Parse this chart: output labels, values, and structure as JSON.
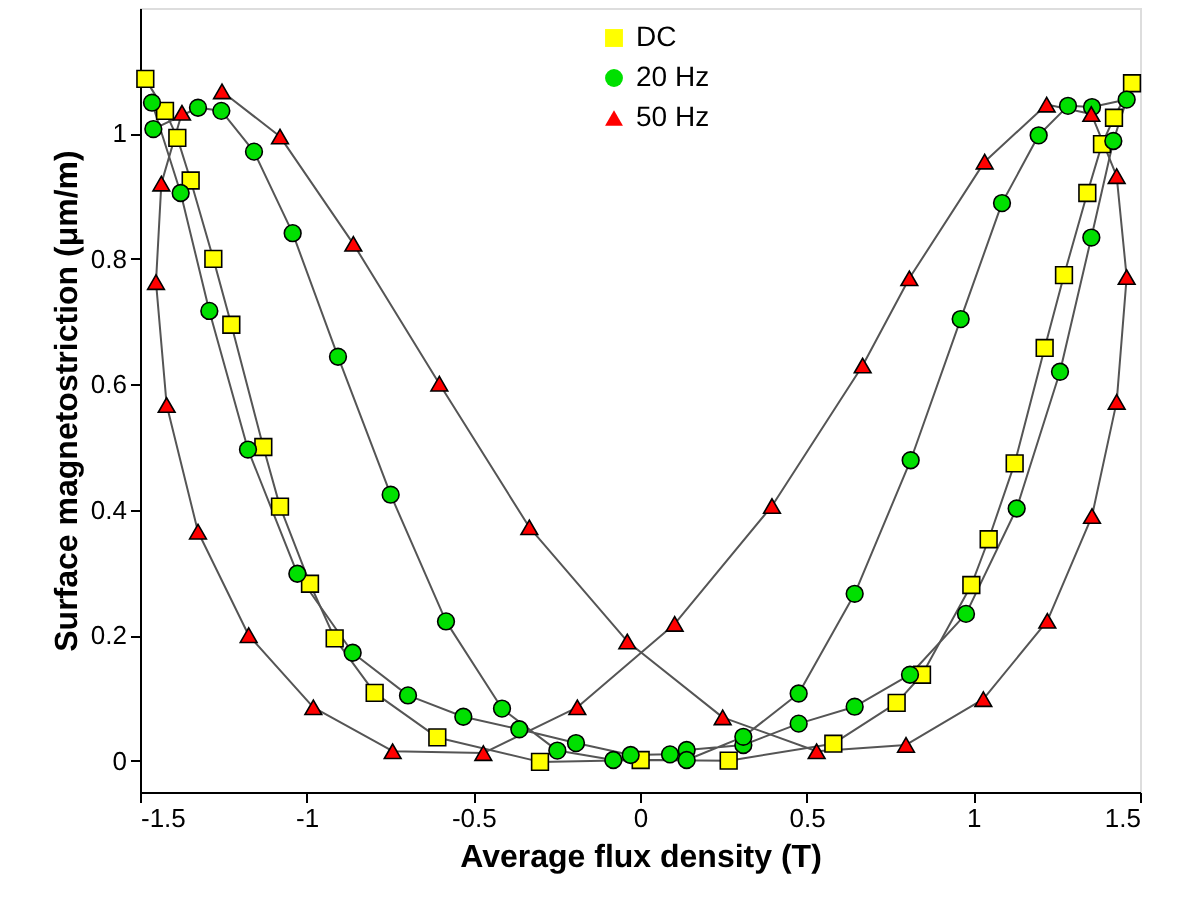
{
  "chart_data": {
    "type": "line",
    "xlabel": "Average flux density (T)",
    "ylabel": "Surface magnetostriction (μm/m)",
    "xlim": [
      -1.5,
      1.5
    ],
    "ylim": [
      -0.05,
      1.2
    ],
    "xticks": [
      -1.5,
      -1,
      -0.5,
      0,
      0.5,
      1,
      1.5
    ],
    "yticks": [
      0,
      0.2,
      0.4,
      0.6,
      0.8,
      1
    ],
    "grid": false,
    "legend": "top",
    "line_style": "solid",
    "series": [
      {
        "name": "DC",
        "color": "#ffff00",
        "marker": "square",
        "x": [
          -1.484,
          -1.425,
          -1.388,
          -1.348,
          -1.28,
          -1.226,
          -1.13,
          -1.08,
          -0.99,
          -0.916,
          -0.796,
          -0.608,
          -0.3,
          0.002,
          0.266,
          0.58,
          0.77,
          0.846,
          0.994,
          1.046,
          1.124,
          1.214,
          1.272,
          1.342,
          1.386,
          1.422,
          1.476
        ],
        "values": [
          1.087,
          1.036,
          0.993,
          0.925,
          0.8,
          0.695,
          0.5,
          0.405,
          0.282,
          0.195,
          0.108,
          0.037,
          -0.002,
          0.001,
          0.0,
          0.027,
          0.092,
          0.137,
          0.28,
          0.353,
          0.474,
          0.658,
          0.774,
          0.905,
          0.983,
          1.025,
          1.08
        ]
      },
      {
        "name": "20 Hz",
        "color": "#00e000",
        "marker": "circle",
        "x": [
          -1.464,
          -1.378,
          -1.292,
          -1.176,
          -1.028,
          -0.862,
          -0.696,
          -0.53,
          -0.362,
          -0.192,
          -0.028,
          0.09,
          0.14,
          0.31,
          0.476,
          0.644,
          0.81,
          0.978,
          1.13,
          1.26,
          1.354,
          1.42,
          1.46,
          1.356,
          1.284,
          1.196,
          1.086,
          0.962,
          0.812,
          0.644,
          0.476,
          0.31,
          0.14,
          -0.08,
          -0.248,
          -0.414,
          -0.582,
          -0.748,
          -0.906,
          -1.042,
          -1.158,
          -1.256,
          -1.326,
          -1.46
        ],
        "values": [
          1.049,
          0.905,
          0.717,
          0.496,
          0.298,
          0.172,
          0.104,
          0.07,
          0.05,
          0.028,
          0.009,
          0.01,
          0.017,
          0.025,
          0.059,
          0.086,
          0.137,
          0.234,
          0.402,
          0.62,
          0.834,
          0.988,
          1.054,
          1.042,
          1.044,
          0.997,
          0.889,
          0.704,
          0.479,
          0.266,
          0.107,
          0.038,
          0.001,
          0.001,
          0.016,
          0.083,
          0.222,
          0.424,
          0.644,
          0.841,
          0.971,
          1.036,
          1.041,
          1.007
        ]
      },
      {
        "name": "50 Hz",
        "color": "#ff0000",
        "marker": "triangle",
        "x": [
          -1.374,
          -1.436,
          -1.452,
          -1.42,
          -1.326,
          -1.174,
          -0.98,
          -0.742,
          -0.47,
          -0.188,
          0.104,
          0.396,
          0.668,
          0.808,
          1.034,
          1.22,
          1.354,
          1.43,
          1.46,
          1.43,
          1.356,
          1.222,
          1.03,
          0.798,
          0.53,
          0.248,
          -0.038,
          -0.332,
          -0.602,
          -0.86,
          -1.08,
          -1.254
        ],
        "values": [
          1.033,
          0.92,
          0.763,
          0.567,
          0.365,
          0.2,
          0.085,
          0.015,
          0.012,
          0.085,
          0.218,
          0.406,
          0.63,
          0.769,
          0.955,
          1.046,
          1.031,
          0.932,
          0.771,
          0.572,
          0.39,
          0.223,
          0.098,
          0.025,
          0.015,
          0.069,
          0.19,
          0.372,
          0.601,
          0.824,
          0.995,
          1.067
        ]
      }
    ]
  }
}
